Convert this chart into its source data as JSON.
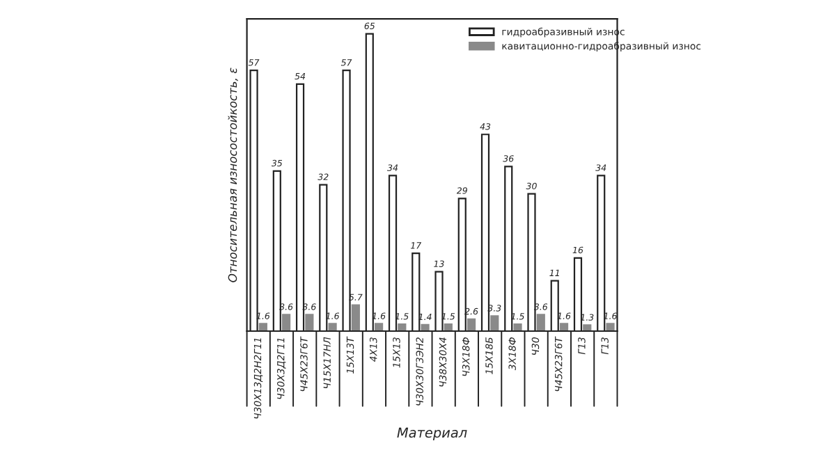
{
  "chart_data": {
    "type": "bar",
    "ylabel": "Относительная износостойкость, ε",
    "xlabel": "Материал",
    "categories": [
      "Ч30Х13Д2Н2Г11",
      "Ч30Х3Д2Г11",
      "Ч45Х23Г6Т",
      "Ч15Х17НЛ",
      "15Х13Т",
      "4Х13",
      "15Х13",
      "Ч30Х30Г3ЭН2",
      "Ч38Х30Х4",
      "Ч3Х18Ф",
      "15Х18Б",
      "3Х18Ф",
      "Ч30",
      "Ч45Х23Г6Т",
      "Г13",
      "Г13"
    ],
    "series": [
      {
        "name": "гидроабразивный износ",
        "color": "#ffffff",
        "values": [
          57,
          35,
          54,
          32,
          57,
          65,
          34,
          17,
          13,
          29,
          43,
          36,
          30,
          11,
          16,
          34
        ]
      },
      {
        "name": "кавитационно-гидроабразивный износ",
        "color": "#8a8a8a",
        "values": [
          1.6,
          3.6,
          3.6,
          1.6,
          5.7,
          1.6,
          1.5,
          1.4,
          1.5,
          2.6,
          3.3,
          1.5,
          3.6,
          1.6,
          1.3,
          1.6
        ]
      }
    ],
    "data_labels": true,
    "legend": "top right"
  }
}
